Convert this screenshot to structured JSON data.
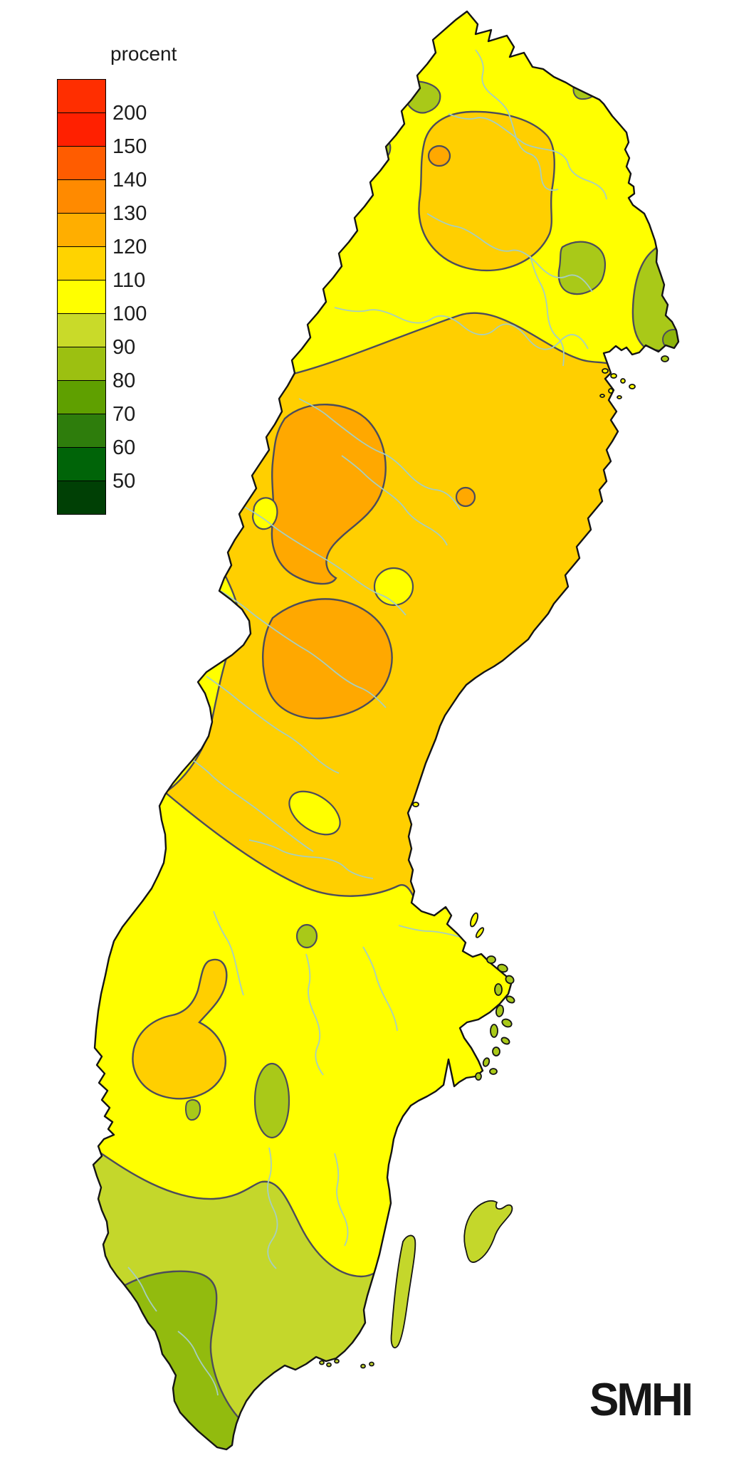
{
  "page": {
    "background": "#FFFFFF"
  },
  "legend": {
    "title": "procent",
    "swatches": [
      {
        "color": "#FF2E00",
        "label": "200"
      },
      {
        "color": "#FF2000",
        "label": "150"
      },
      {
        "color": "#FF5C00",
        "label": "140"
      },
      {
        "color": "#FF8A00",
        "label": "130"
      },
      {
        "color": "#FFAE00",
        "label": "120"
      },
      {
        "color": "#FFD300",
        "label": "110"
      },
      {
        "color": "#FFFF00",
        "label": "100"
      },
      {
        "color": "#C9DA29",
        "label": "90"
      },
      {
        "color": "#9CC011",
        "label": "80"
      },
      {
        "color": "#5FA000",
        "label": "70"
      },
      {
        "color": "#2E7D0C",
        "label": "60"
      },
      {
        "color": "#006408",
        "label": "50"
      },
      {
        "color": "#004005",
        "label": null
      }
    ]
  },
  "map": {
    "colors": {
      "sea": "#FFFFFF",
      "base": "#FFFF00",
      "band110": "#FFCF00",
      "band120": "#FFA800",
      "green90": "#C4D72B",
      "green80": "#92BB0E",
      "patch": "#A9C918",
      "patchDark": "#8DB40A",
      "river": "#A6CEC0",
      "contour": "#4C4C5A",
      "coast": "#141414"
    },
    "regions": [
      {
        "name": "base-country",
        "band": "100-110"
      },
      {
        "name": "far-north-blob",
        "band": "110-120"
      },
      {
        "name": "far-north-spot",
        "band": "120-130"
      },
      {
        "name": "central-band",
        "band": "110-120"
      },
      {
        "name": "central-orange-west",
        "band": "120-130"
      },
      {
        "name": "central-orange-south",
        "band": "120-130"
      },
      {
        "name": "central-orange-dot",
        "band": "120-130"
      },
      {
        "name": "southwest-amber",
        "band": "110-120"
      },
      {
        "name": "south-region",
        "band": "90-100"
      },
      {
        "name": "skane-green",
        "band": "80-90"
      },
      {
        "name": "ne-coast-patch",
        "band": "90-100"
      },
      {
        "name": "ne-coast-dark-spot",
        "band": "80-90"
      },
      {
        "name": "border-patches",
        "band": "90-100"
      },
      {
        "name": "gotland",
        "band": "90-100"
      },
      {
        "name": "oland",
        "band": "90-100"
      },
      {
        "name": "stockholm-archipelago",
        "band": "90-100"
      }
    ]
  },
  "logo": {
    "text": "SMHI"
  }
}
